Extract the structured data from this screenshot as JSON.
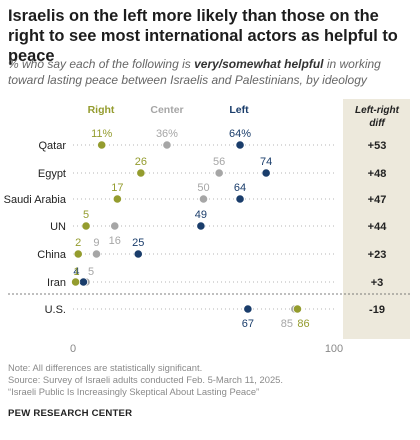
{
  "title": "Israelis on the left more likely than those on the right to see most international actors as helpful to peace",
  "subtitle": {
    "pre": "% who say each of the following is ",
    "bold": "very/somewhat helpful",
    "post": " in working toward lasting peace between Israelis and Palestinians, by ideology"
  },
  "footer": {
    "note": "Note: All differences are statistically significant.",
    "source": "Source: Survey of Israeli adults conducted Feb. 5-March 11, 2025.",
    "report": "“Israeli Public Is Increasingly Skeptical About Lasting Peace”"
  },
  "brand": "PEW RESEARCH CENTER",
  "colors": {
    "right": "#949c2e",
    "center": "#a6a6a6",
    "left": "#1a3d6b",
    "diff_bg": "#ede9dc"
  },
  "chart_data": {
    "type": "dot",
    "xlim": [
      0,
      100
    ],
    "x_ticks": [
      "0",
      "100"
    ],
    "diff_header": "Left-right diff",
    "categories": [
      "Qatar",
      "Egypt",
      "Saudi Arabia",
      "UN",
      "China",
      "Iran",
      "U.S."
    ],
    "series": [
      {
        "name": "Right",
        "key": "right",
        "values": [
          11,
          26,
          17,
          5,
          2,
          1,
          86
        ],
        "labels": [
          "11%",
          "26",
          "17",
          "5",
          "2",
          "1",
          "86"
        ]
      },
      {
        "name": "Center",
        "key": "center",
        "values": [
          36,
          56,
          50,
          16,
          9,
          5,
          85
        ],
        "labels": [
          "36%",
          "56",
          "50",
          "16",
          "9",
          "5",
          "85"
        ]
      },
      {
        "name": "Left",
        "key": "left",
        "values": [
          64,
          74,
          64,
          49,
          25,
          4,
          67
        ],
        "labels": [
          "64%",
          "74",
          "64",
          "49",
          "25",
          "4",
          "67"
        ]
      }
    ],
    "diffs": [
      "+53",
      "+48",
      "+47",
      "+44",
      "+23",
      "+3",
      "-19"
    ]
  }
}
